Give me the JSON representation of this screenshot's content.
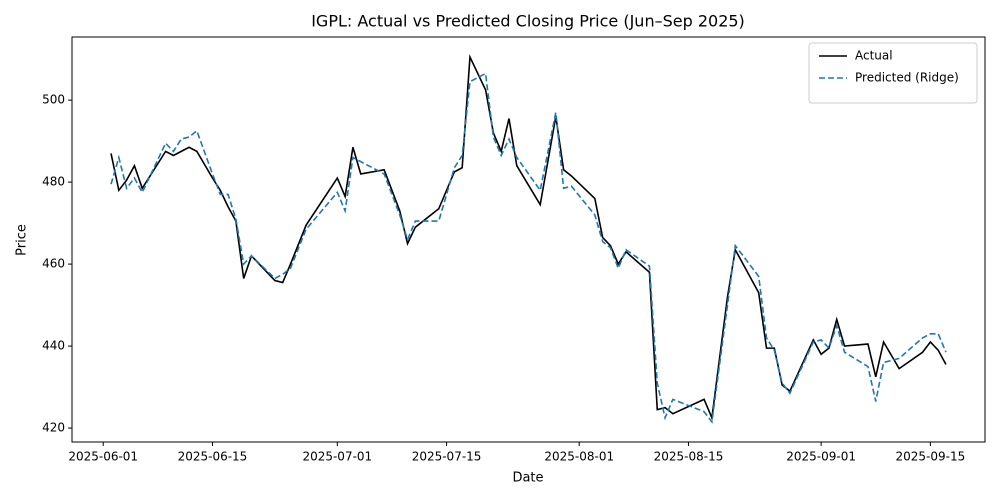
{
  "chart_data": {
    "type": "line",
    "title": "IGPL: Actual vs Predicted Closing Price (Jun–Sep 2025)",
    "x_label": "Date",
    "y_label": "Price",
    "x": [
      "2025-06-02",
      "2025-06-03",
      "2025-06-04",
      "2025-06-05",
      "2025-06-06",
      "2025-06-09",
      "2025-06-10",
      "2025-06-11",
      "2025-06-12",
      "2025-06-13",
      "2025-06-15",
      "2025-06-16",
      "2025-06-17",
      "2025-06-18",
      "2025-06-19",
      "2025-06-20",
      "2025-06-23",
      "2025-06-24",
      "2025-06-25",
      "2025-06-27",
      "2025-07-01",
      "2025-07-02",
      "2025-07-03",
      "2025-07-04",
      "2025-07-07",
      "2025-07-09",
      "2025-07-10",
      "2025-07-11",
      "2025-07-14",
      "2025-07-16",
      "2025-07-17",
      "2025-07-18",
      "2025-07-20",
      "2025-07-21",
      "2025-07-22",
      "2025-07-23",
      "2025-07-24",
      "2025-07-27",
      "2025-07-29",
      "2025-07-30",
      "2025-07-31",
      "2025-08-03",
      "2025-08-04",
      "2025-08-05",
      "2025-08-06",
      "2025-08-07",
      "2025-08-10",
      "2025-08-11",
      "2025-08-12",
      "2025-08-13",
      "2025-08-17",
      "2025-08-18",
      "2025-08-20",
      "2025-08-21",
      "2025-08-24",
      "2025-08-25",
      "2025-08-26",
      "2025-08-27",
      "2025-08-28",
      "2025-08-31",
      "2025-09-01",
      "2025-09-02",
      "2025-09-03",
      "2025-09-04",
      "2025-09-07",
      "2025-09-08",
      "2025-09-09",
      "2025-09-11",
      "2025-09-14",
      "2025-09-15",
      "2025-09-16",
      "2025-09-17"
    ],
    "series": [
      {
        "name": "Actual",
        "color": "#000000",
        "dash": false,
        "values": [
          487,
          478,
          480.5,
          484,
          478.5,
          487.5,
          486.5,
          487.5,
          488.5,
          487.5,
          481,
          478,
          474,
          470.5,
          456.5,
          462,
          456,
          455.5,
          460,
          469.5,
          481,
          476.5,
          488.5,
          482,
          483,
          473,
          465,
          469,
          473.5,
          482.5,
          483.5,
          510.5,
          502.5,
          492,
          487.5,
          495.5,
          484,
          474.5,
          496,
          483,
          481.5,
          476,
          466.5,
          464.5,
          460,
          463,
          458,
          424.5,
          425,
          423.5,
          427,
          422.5,
          452,
          463.5,
          453,
          439.5,
          439.5,
          430.5,
          429,
          441.5,
          438,
          439.5,
          446.5,
          440,
          440.5,
          432.5,
          441,
          434.5,
          438.5,
          441,
          439,
          435.5
        ]
      },
      {
        "name": "Predicted (Ridge)",
        "color": "#1f77b4",
        "dash": true,
        "values": [
          479.5,
          486,
          478.5,
          481,
          477.5,
          489.5,
          487.5,
          490.5,
          491,
          492.5,
          482,
          477,
          477,
          471,
          460,
          462,
          456.5,
          457.5,
          459,
          468.5,
          477.5,
          473,
          486,
          485,
          482,
          472,
          466,
          470.5,
          470.5,
          483.5,
          486.5,
          504.5,
          506.5,
          491,
          486.5,
          490.5,
          486,
          478,
          497,
          478.5,
          479,
          472,
          465.5,
          464,
          459,
          463.5,
          459.5,
          431,
          422.5,
          427,
          424,
          421.5,
          450,
          464.5,
          457,
          442,
          439,
          431,
          428.5,
          441,
          441.5,
          439.5,
          445,
          438.5,
          435,
          426.5,
          436,
          437,
          442,
          443,
          443,
          438.5
        ]
      }
    ],
    "xlim": [
      "2025-05-28",
      "2025-09-22"
    ],
    "xticks": [
      "2025-06-01",
      "2025-06-15",
      "2025-07-01",
      "2025-07-15",
      "2025-08-01",
      "2025-08-15",
      "2025-09-01",
      "2025-09-15"
    ],
    "ylim": [
      416.6,
      515.4
    ],
    "yticks": [
      420,
      440,
      460,
      480,
      500
    ],
    "grid": false,
    "legend": "upper right"
  }
}
